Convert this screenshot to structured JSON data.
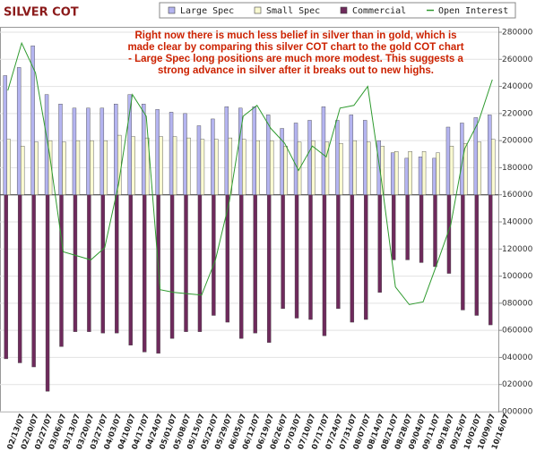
{
  "chart_data": {
    "type": "bar",
    "title": "SILVER COT",
    "annotation": "Right now there is much less belief in silver than in gold, which is made clear by comparing this silver COT chart to the gold COT chart - Large Spec long positions are much more modest. This suggests a strong advance in silver after it breaks out to new highs.",
    "categories": [
      "02/13/07",
      "02/20/07",
      "02/27/07",
      "03/06/07",
      "03/13/07",
      "03/20/07",
      "03/27/07",
      "04/03/07",
      "04/10/07",
      "04/17/07",
      "04/24/07",
      "05/01/07",
      "05/08/07",
      "05/15/07",
      "05/22/07",
      "05/29/07",
      "06/05/07",
      "06/12/07",
      "06/19/07",
      "06/26/07",
      "07/03/07",
      "07/10/07",
      "07/17/07",
      "07/24/07",
      "07/31/07",
      "08/07/07",
      "08/14/07",
      "08/21/07",
      "08/28/07",
      "09/04/07",
      "09/11/07",
      "09/18/07",
      "09/25/07",
      "10/02/07",
      "10/09/07",
      "10/16/07"
    ],
    "baseline": 160000,
    "series": [
      {
        "name": "Large Spec",
        "color": "#b4b4f0",
        "kind": "bar",
        "values": [
          248000,
          254000,
          270000,
          234000,
          227000,
          224000,
          224000,
          224000,
          227000,
          234000,
          227000,
          223000,
          221000,
          220000,
          211000,
          216000,
          225000,
          224000,
          225000,
          219000,
          209000,
          213000,
          215000,
          225000,
          215000,
          219000,
          215000,
          200000,
          191000,
          187000,
          188000,
          187000,
          210000,
          213000,
          217000,
          219000
        ]
      },
      {
        "name": "Small Spec",
        "color": "#fafad2",
        "kind": "bar",
        "values": [
          201000,
          196000,
          199000,
          200000,
          199000,
          200000,
          200000,
          200000,
          204000,
          203000,
          202000,
          203000,
          203000,
          202000,
          201000,
          201000,
          202000,
          201000,
          200000,
          200000,
          196000,
          199000,
          200000,
          199000,
          198000,
          200000,
          199000,
          196000,
          192000,
          192000,
          192000,
          191000,
          196000,
          198000,
          199000,
          201000
        ]
      },
      {
        "name": "Commercial",
        "color": "#6e2a5c",
        "kind": "bar",
        "values": [
          39000,
          36000,
          33000,
          15000,
          48000,
          59000,
          59000,
          58000,
          58000,
          49000,
          44000,
          43000,
          54000,
          59000,
          59000,
          71000,
          66000,
          54000,
          58000,
          51000,
          76000,
          69000,
          68000,
          56000,
          76000,
          66000,
          68000,
          88000,
          112000,
          112000,
          110000,
          107000,
          102000,
          75000,
          71000,
          64000
        ]
      },
      {
        "name": "Open Interest",
        "color": "#2e9a2e",
        "kind": "line",
        "values": [
          237000,
          272000,
          250000,
          191000,
          118000,
          115000,
          112000,
          121000,
          168000,
          234000,
          218000,
          90000,
          88000,
          87000,
          86000,
          112000,
          155000,
          218000,
          226000,
          209000,
          198000,
          178000,
          196000,
          188000,
          224000,
          226000,
          240000,
          170000,
          92000,
          79000,
          81000,
          109000,
          138000,
          194000,
          214000,
          245000
        ]
      }
    ],
    "ylim": [
      0,
      280000
    ],
    "yticks": [
      280000,
      260000,
      240000,
      220000,
      200000,
      180000,
      160000,
      140000,
      120000,
      100000,
      {
        "value": 80000,
        "label": "080000"
      },
      {
        "value": 60000,
        "label": "060000"
      },
      {
        "value": 40000,
        "label": "040000"
      },
      {
        "value": 20000,
        "label": "020000"
      },
      {
        "value": 0,
        "label": "000000"
      }
    ],
    "grid": true,
    "legend": "top"
  }
}
